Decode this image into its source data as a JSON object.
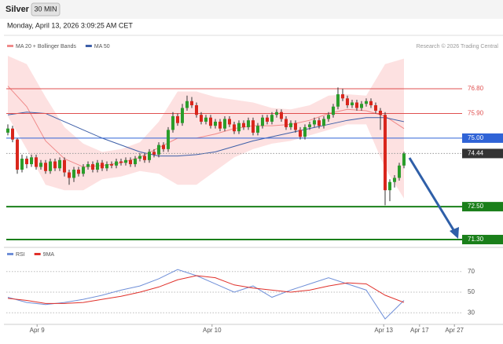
{
  "header": {
    "symbol": "Silver",
    "interval": "30 MIN",
    "timestamp": "Monday, April 13, 2026 3:09:25 AM CET",
    "copyright": "Research © 2026 Trading Central"
  },
  "chart_data": [
    {
      "type": "candlestick",
      "up_color": "#2a9d2a",
      "down_color": "#d9261c",
      "xlim": [
        0,
        96
      ],
      "ylim": [
        71.1,
        78.75
      ],
      "xticks": [
        {
          "value": 6.2,
          "label": "Apr 9"
        },
        {
          "value": 43.3,
          "label": "Apr 10"
        },
        {
          "value": 79.7,
          "label": "Apr 13"
        },
        {
          "value": 87.3,
          "label": "Apr 17"
        },
        {
          "value": 94.7,
          "label": "Apr 27"
        }
      ],
      "ohlc": [
        [
          75.2,
          75.5,
          75.1,
          75.35
        ],
        [
          75.35,
          75.45,
          74.85,
          74.95
        ],
        [
          74.95,
          75.0,
          73.7,
          73.85
        ],
        [
          73.85,
          74.4,
          73.75,
          74.25
        ],
        [
          74.25,
          74.35,
          73.9,
          74.05
        ],
        [
          74.05,
          74.4,
          73.95,
          74.3
        ],
        [
          74.3,
          74.4,
          73.85,
          73.95
        ],
        [
          73.95,
          74.2,
          73.85,
          74.1
        ],
        [
          74.1,
          74.2,
          73.7,
          73.8
        ],
        [
          73.8,
          74.25,
          73.7,
          74.15
        ],
        [
          74.15,
          74.25,
          73.8,
          73.9
        ],
        [
          73.9,
          74.3,
          73.8,
          74.2
        ],
        [
          74.2,
          74.3,
          73.6,
          73.75
        ],
        [
          73.75,
          73.85,
          73.3,
          73.55
        ],
        [
          73.55,
          73.95,
          73.4,
          73.85
        ],
        [
          73.85,
          73.95,
          73.6,
          73.7
        ],
        [
          73.7,
          74.05,
          73.6,
          73.95
        ],
        [
          73.95,
          74.15,
          73.85,
          74.05
        ],
        [
          74.05,
          74.15,
          73.75,
          73.85
        ],
        [
          73.85,
          74.2,
          73.75,
          74.1
        ],
        [
          74.1,
          74.2,
          73.8,
          73.9
        ],
        [
          73.9,
          74.15,
          73.8,
          74.05
        ],
        [
          74.05,
          74.15,
          73.9,
          74.0
        ],
        [
          74.0,
          74.25,
          73.9,
          74.15
        ],
        [
          74.15,
          74.25,
          74.0,
          74.1
        ],
        [
          74.1,
          74.3,
          74.0,
          74.2
        ],
        [
          74.2,
          74.3,
          73.95,
          74.05
        ],
        [
          74.05,
          74.35,
          73.95,
          74.25
        ],
        [
          74.25,
          74.45,
          74.15,
          74.35
        ],
        [
          74.35,
          74.45,
          74.1,
          74.2
        ],
        [
          74.2,
          74.6,
          74.1,
          74.5
        ],
        [
          74.5,
          74.6,
          74.3,
          74.4
        ],
        [
          74.4,
          74.85,
          74.3,
          74.75
        ],
        [
          74.75,
          74.85,
          74.5,
          74.6
        ],
        [
          74.6,
          75.4,
          74.5,
          75.3
        ],
        [
          75.3,
          75.95,
          75.2,
          75.8
        ],
        [
          75.8,
          75.9,
          75.45,
          75.55
        ],
        [
          75.55,
          76.25,
          75.45,
          76.1
        ],
        [
          76.1,
          76.55,
          76.0,
          76.35
        ],
        [
          76.35,
          76.5,
          76.1,
          76.2
        ],
        [
          76.2,
          76.3,
          75.75,
          75.85
        ],
        [
          75.85,
          75.95,
          75.5,
          75.6
        ],
        [
          75.6,
          75.85,
          75.5,
          75.75
        ],
        [
          75.75,
          75.85,
          75.35,
          75.45
        ],
        [
          75.45,
          75.7,
          75.35,
          75.6
        ],
        [
          75.6,
          75.7,
          75.25,
          75.35
        ],
        [
          75.35,
          75.8,
          75.25,
          75.7
        ],
        [
          75.7,
          75.8,
          75.4,
          75.5
        ],
        [
          75.5,
          75.6,
          75.15,
          75.25
        ],
        [
          75.25,
          75.65,
          75.15,
          75.55
        ],
        [
          75.55,
          75.65,
          75.3,
          75.4
        ],
        [
          75.4,
          75.75,
          75.3,
          75.65
        ],
        [
          75.65,
          75.75,
          75.1,
          75.2
        ],
        [
          75.2,
          75.55,
          75.1,
          75.45
        ],
        [
          75.45,
          75.85,
          75.35,
          75.75
        ],
        [
          75.75,
          75.85,
          75.5,
          75.6
        ],
        [
          75.6,
          75.95,
          75.5,
          75.85
        ],
        [
          75.85,
          76.05,
          75.75,
          75.95
        ],
        [
          75.95,
          76.05,
          75.6,
          75.7
        ],
        [
          75.7,
          75.8,
          75.3,
          75.4
        ],
        [
          75.4,
          75.65,
          75.3,
          75.55
        ],
        [
          75.55,
          75.65,
          75.2,
          75.3
        ],
        [
          75.3,
          75.4,
          74.95,
          75.05
        ],
        [
          75.05,
          75.5,
          74.95,
          75.4
        ],
        [
          75.4,
          75.6,
          75.3,
          75.5
        ],
        [
          75.5,
          75.75,
          75.4,
          75.65
        ],
        [
          75.65,
          75.75,
          75.35,
          75.45
        ],
        [
          75.45,
          75.8,
          75.35,
          75.7
        ],
        [
          75.7,
          75.95,
          75.6,
          75.85
        ],
        [
          75.85,
          76.25,
          75.75,
          76.15
        ],
        [
          76.15,
          76.85,
          76.05,
          76.6
        ],
        [
          76.6,
          76.8,
          76.35,
          76.45
        ],
        [
          76.45,
          76.55,
          76.1,
          76.2
        ],
        [
          76.2,
          76.4,
          76.1,
          76.3
        ],
        [
          76.3,
          76.4,
          76.0,
          76.1
        ],
        [
          76.1,
          76.35,
          76.0,
          76.25
        ],
        [
          76.25,
          76.45,
          76.15,
          76.35
        ],
        [
          76.35,
          76.45,
          76.1,
          76.2
        ],
        [
          76.2,
          76.3,
          75.9,
          76.0
        ],
        [
          76.0,
          76.1,
          75.3,
          75.85
        ],
        [
          75.85,
          75.95,
          72.55,
          73.1
        ],
        [
          73.1,
          73.5,
          72.7,
          73.4
        ],
        [
          73.4,
          73.65,
          73.2,
          73.55
        ],
        [
          73.55,
          74.1,
          73.45,
          74.0
        ],
        [
          74.0,
          74.5,
          73.9,
          74.44
        ]
      ],
      "x": [
        0,
        4,
        8,
        12,
        16,
        20,
        24,
        28,
        32,
        36,
        40,
        44,
        48,
        52,
        56,
        60,
        64,
        68,
        72,
        76,
        80,
        84
      ],
      "series": [
        {
          "name": "MA 20 + Bollinger Bands",
          "color": "#f08a8a",
          "band_color": "#fde1e1",
          "values": [
            76.9,
            76.15,
            74.9,
            74.25,
            73.95,
            74.0,
            74.1,
            74.3,
            74.65,
            75.0,
            75.0,
            75.15,
            75.35,
            75.45,
            75.45,
            75.5,
            75.65,
            75.9,
            76.05,
            76.0,
            75.8,
            75.35
          ],
          "upper": [
            78.0,
            77.7,
            76.5,
            75.4,
            74.8,
            74.5,
            74.6,
            74.85,
            75.6,
            76.7,
            76.7,
            76.5,
            76.4,
            76.3,
            76.1,
            76.05,
            76.2,
            76.55,
            76.6,
            76.55,
            77.7,
            77.9
          ],
          "lower": [
            75.8,
            74.6,
            73.3,
            73.1,
            73.1,
            73.5,
            73.6,
            73.8,
            73.7,
            73.3,
            73.3,
            73.8,
            74.3,
            74.6,
            74.8,
            74.9,
            75.1,
            75.3,
            75.5,
            75.5,
            73.9,
            72.8
          ]
        },
        {
          "name": "MA 50",
          "color": "#3d5fa8",
          "values": [
            75.85,
            75.95,
            75.9,
            75.6,
            75.3,
            75.0,
            74.75,
            74.5,
            74.35,
            74.35,
            74.4,
            74.5,
            74.7,
            74.9,
            75.05,
            75.2,
            75.35,
            75.5,
            75.65,
            75.75,
            75.75,
            75.6
          ]
        }
      ],
      "levels": [
        {
          "value": 76.8,
          "label": "76.80",
          "color": "#e05050",
          "box": false,
          "dotted": false,
          "width": 1
        },
        {
          "value": 75.9,
          "label": "75.90",
          "color": "#e05050",
          "box": false,
          "dotted": false,
          "width": 1
        },
        {
          "value": 75.0,
          "label": "75.00",
          "color": "#2f63d6",
          "box": true,
          "dotted": false,
          "width": 1
        },
        {
          "value": 74.44,
          "label": "74.44",
          "color": "#333333",
          "box": true,
          "dotted": true,
          "width": 1
        },
        {
          "value": 72.5,
          "label": "72.50",
          "color": "#1a7f1a",
          "box": true,
          "dotted": false,
          "width": 2
        },
        {
          "value": 71.3,
          "label": "71.30",
          "color": "#1a7f1a",
          "box": true,
          "dotted": false,
          "width": 2
        }
      ]
    },
    {
      "type": "line",
      "xlim": [
        0,
        96
      ],
      "ylim": [
        21,
        82
      ],
      "yticks": [
        70,
        50,
        30
      ],
      "x": [
        0,
        4,
        8,
        12,
        16,
        20,
        24,
        28,
        32,
        36,
        40,
        44,
        48,
        52,
        56,
        60,
        64,
        68,
        72,
        76,
        80,
        84
      ],
      "series": [
        {
          "name": "RSI",
          "color": "#6f8fd8",
          "values": [
            45,
            40,
            38,
            40,
            43,
            47,
            52,
            56,
            63,
            72,
            66,
            58,
            50,
            56,
            45,
            52,
            58,
            64,
            58,
            52,
            24,
            42
          ]
        },
        {
          "name": "9MA",
          "color": "#e0302a",
          "values": [
            44,
            42,
            39,
            39,
            40,
            43,
            46,
            50,
            55,
            62,
            66,
            64,
            57,
            54,
            52,
            50,
            52,
            56,
            59,
            58,
            47,
            40
          ]
        }
      ]
    }
  ]
}
